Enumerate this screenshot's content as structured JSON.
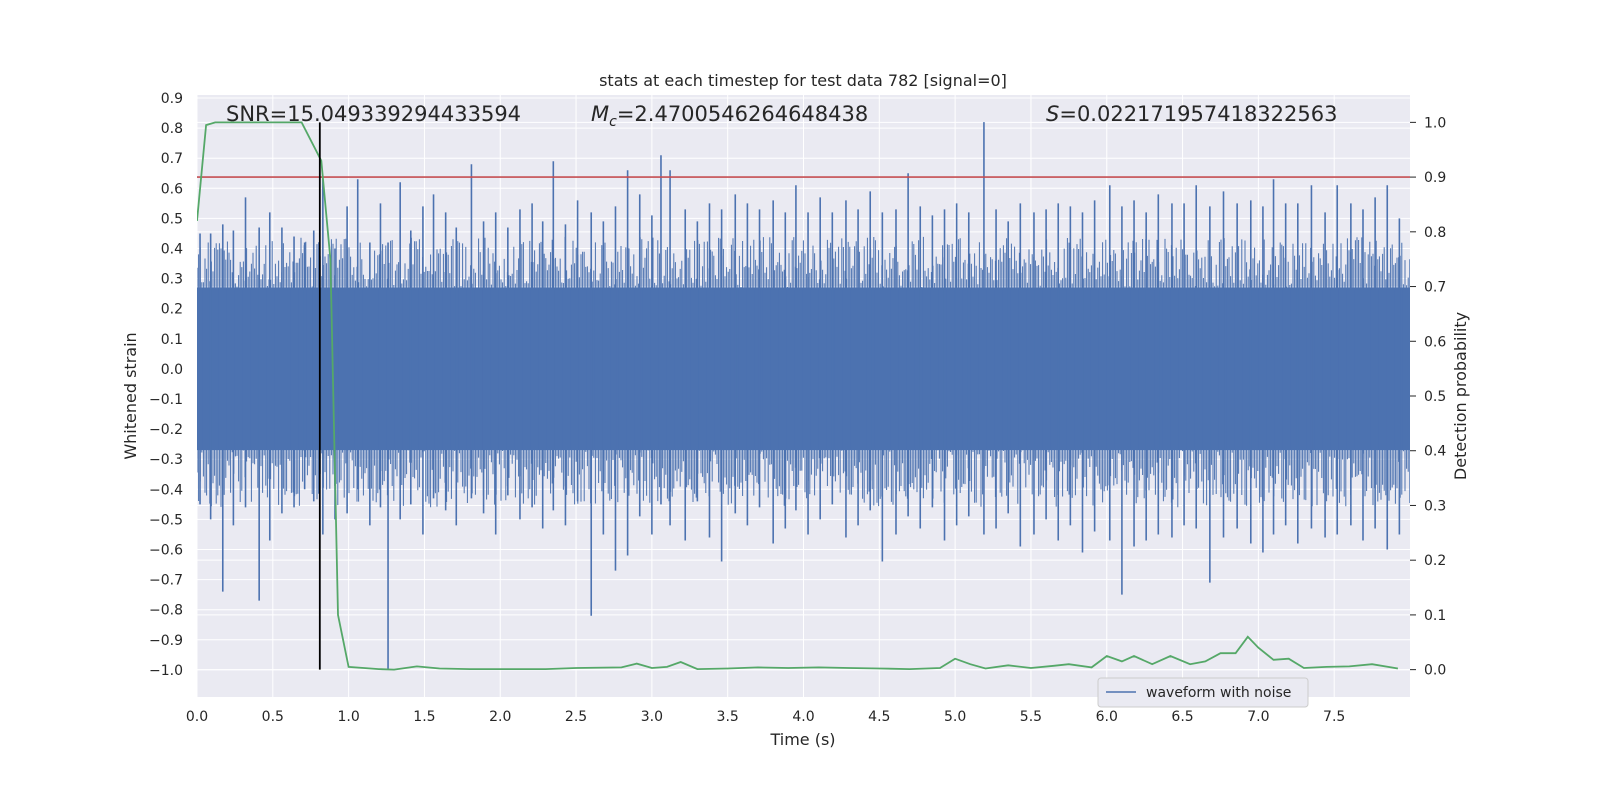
{
  "chart_data": {
    "type": "line",
    "title": "stats at each timestep for test data 782 [signal=0]",
    "xlabel": "Time (s)",
    "ylabel": "Whitened strain",
    "y2label": "Detection probability",
    "xlim": [
      0.0,
      8.0
    ],
    "ylim": [
      -1.09,
      0.91
    ],
    "y2lim": [
      -0.05,
      1.05
    ],
    "x_ticks": [
      "0.0",
      "0.5",
      "1.0",
      "1.5",
      "2.0",
      "2.5",
      "3.0",
      "3.5",
      "4.0",
      "4.5",
      "5.0",
      "5.5",
      "6.0",
      "6.5",
      "7.0",
      "7.5"
    ],
    "y_ticks": [
      "0.9",
      "0.8",
      "0.7",
      "0.6",
      "0.5",
      "0.4",
      "0.3",
      "0.2",
      "0.1",
      "0.0",
      "−0.1",
      "−0.2",
      "−0.3",
      "−0.4",
      "−0.5",
      "−0.6",
      "−0.7",
      "−0.8",
      "−0.9",
      "−1.0"
    ],
    "y2_ticks": [
      "1.0",
      "0.9",
      "0.8",
      "0.7",
      "0.6",
      "0.5",
      "0.4",
      "0.3",
      "0.2",
      "0.1",
      "0.0"
    ],
    "annotations": {
      "snr": "SNR=15.049339294433594",
      "mc_symbol": "M",
      "mc_sub": "c",
      "mc_value": "=2.4700546264648438",
      "s_symbol": "S",
      "s_value": "=0.022171957418322563"
    },
    "legend": {
      "label": "waveform with noise",
      "position": "lower-right"
    },
    "threshold": {
      "value": 0.9,
      "axis": "y2",
      "color": "#c44e52"
    },
    "marker_time": 0.81,
    "series": [
      {
        "name": "waveform with noise",
        "axis": "y",
        "color": "#4c72b0",
        "band": 0.27,
        "spikes": [
          {
            "t": 0.02,
            "min": -0.45,
            "max": 0.45
          },
          {
            "t": 0.09,
            "min": -0.5,
            "max": 0.45
          },
          {
            "t": 0.17,
            "min": -0.74,
            "max": 0.48
          },
          {
            "t": 0.24,
            "min": -0.52,
            "max": 0.46
          },
          {
            "t": 0.32,
            "min": -0.46,
            "max": 0.57
          },
          {
            "t": 0.41,
            "min": -0.77,
            "max": 0.47
          },
          {
            "t": 0.48,
            "min": -0.57,
            "max": 0.52
          },
          {
            "t": 0.56,
            "min": -0.48,
            "max": 0.47
          },
          {
            "t": 0.64,
            "min": -0.46,
            "max": 0.44
          },
          {
            "t": 0.71,
            "min": -0.4,
            "max": 0.42
          },
          {
            "t": 0.77,
            "min": -0.44,
            "max": 0.46
          },
          {
            "t": 0.83,
            "min": -0.55,
            "max": 0.63
          },
          {
            "t": 0.91,
            "min": -0.5,
            "max": 0.4
          },
          {
            "t": 0.99,
            "min": -0.48,
            "max": 0.54
          },
          {
            "t": 1.06,
            "min": -0.4,
            "max": 0.63
          },
          {
            "t": 1.14,
            "min": -0.52,
            "max": 0.42
          },
          {
            "t": 1.21,
            "min": -0.46,
            "max": 0.55
          },
          {
            "t": 1.26,
            "min": -1.0,
            "max": 0.42
          },
          {
            "t": 1.34,
            "min": -0.5,
            "max": 0.62
          },
          {
            "t": 1.41,
            "min": -0.45,
            "max": 0.46
          },
          {
            "t": 1.49,
            "min": -0.55,
            "max": 0.54
          },
          {
            "t": 1.56,
            "min": -0.43,
            "max": 0.58
          },
          {
            "t": 1.64,
            "min": -0.47,
            "max": 0.52
          },
          {
            "t": 1.71,
            "min": -0.52,
            "max": 0.47
          },
          {
            "t": 1.81,
            "min": -0.43,
            "max": 0.68
          },
          {
            "t": 1.89,
            "min": -0.48,
            "max": 0.49
          },
          {
            "t": 1.97,
            "min": -0.55,
            "max": 0.52
          },
          {
            "t": 2.05,
            "min": -0.42,
            "max": 0.47
          },
          {
            "t": 2.13,
            "min": -0.5,
            "max": 0.53
          },
          {
            "t": 2.21,
            "min": -0.46,
            "max": 0.55
          },
          {
            "t": 2.28,
            "min": -0.53,
            "max": 0.49
          },
          {
            "t": 2.35,
            "min": -0.47,
            "max": 0.69
          },
          {
            "t": 2.43,
            "min": -0.52,
            "max": 0.48
          },
          {
            "t": 2.51,
            "min": -0.44,
            "max": 0.56
          },
          {
            "t": 2.6,
            "min": -0.82,
            "max": 0.52
          },
          {
            "t": 2.68,
            "min": -0.55,
            "max": 0.49
          },
          {
            "t": 2.76,
            "min": -0.67,
            "max": 0.54
          },
          {
            "t": 2.84,
            "min": -0.62,
            "max": 0.66
          },
          {
            "t": 2.92,
            "min": -0.49,
            "max": 0.58
          },
          {
            "t": 3.0,
            "min": -0.55,
            "max": 0.51
          },
          {
            "t": 3.06,
            "min": -0.45,
            "max": 0.71
          },
          {
            "t": 3.12,
            "min": -0.52,
            "max": 0.66
          },
          {
            "t": 3.22,
            "min": -0.57,
            "max": 0.53
          },
          {
            "t": 3.3,
            "min": -0.44,
            "max": 0.49
          },
          {
            "t": 3.38,
            "min": -0.56,
            "max": 0.55
          },
          {
            "t": 3.46,
            "min": -0.64,
            "max": 0.53
          },
          {
            "t": 3.55,
            "min": -0.48,
            "max": 0.58
          },
          {
            "t": 3.63,
            "min": -0.52,
            "max": 0.55
          },
          {
            "t": 3.71,
            "min": -0.46,
            "max": 0.53
          },
          {
            "t": 3.8,
            "min": -0.58,
            "max": 0.56
          },
          {
            "t": 3.88,
            "min": -0.53,
            "max": 0.52
          },
          {
            "t": 3.95,
            "min": -0.47,
            "max": 0.61
          },
          {
            "t": 4.03,
            "min": -0.55,
            "max": 0.52
          },
          {
            "t": 4.11,
            "min": -0.5,
            "max": 0.57
          },
          {
            "t": 4.19,
            "min": -0.45,
            "max": 0.52
          },
          {
            "t": 4.28,
            "min": -0.56,
            "max": 0.56
          },
          {
            "t": 4.36,
            "min": -0.52,
            "max": 0.53
          },
          {
            "t": 4.44,
            "min": -0.47,
            "max": 0.59
          },
          {
            "t": 4.52,
            "min": -0.64,
            "max": 0.52
          },
          {
            "t": 4.61,
            "min": -0.55,
            "max": 0.53
          },
          {
            "t": 4.69,
            "min": -0.49,
            "max": 0.65
          },
          {
            "t": 4.77,
            "min": -0.53,
            "max": 0.54
          },
          {
            "t": 4.85,
            "min": -0.46,
            "max": 0.51
          },
          {
            "t": 4.93,
            "min": -0.57,
            "max": 0.53
          },
          {
            "t": 5.01,
            "min": -0.52,
            "max": 0.55
          },
          {
            "t": 5.09,
            "min": -0.49,
            "max": 0.52
          },
          {
            "t": 5.19,
            "min": -0.55,
            "max": 0.82
          },
          {
            "t": 5.27,
            "min": -0.53,
            "max": 0.53
          },
          {
            "t": 5.35,
            "min": -0.48,
            "max": 0.49
          },
          {
            "t": 5.43,
            "min": -0.59,
            "max": 0.55
          },
          {
            "t": 5.52,
            "min": -0.55,
            "max": 0.52
          },
          {
            "t": 5.6,
            "min": -0.5,
            "max": 0.53
          },
          {
            "t": 5.68,
            "min": -0.57,
            "max": 0.55
          },
          {
            "t": 5.76,
            "min": -0.52,
            "max": 0.54
          },
          {
            "t": 5.84,
            "min": -0.61,
            "max": 0.52
          },
          {
            "t": 5.92,
            "min": -0.54,
            "max": 0.56
          },
          {
            "t": 6.02,
            "min": -0.57,
            "max": 0.61
          },
          {
            "t": 6.1,
            "min": -0.75,
            "max": 0.54
          },
          {
            "t": 6.18,
            "min": -0.59,
            "max": 0.56
          },
          {
            "t": 6.26,
            "min": -0.57,
            "max": 0.52
          },
          {
            "t": 6.34,
            "min": -0.55,
            "max": 0.58
          },
          {
            "t": 6.43,
            "min": -0.56,
            "max": 0.55
          },
          {
            "t": 6.51,
            "min": -0.52,
            "max": 0.55
          },
          {
            "t": 6.59,
            "min": -0.53,
            "max": 0.61
          },
          {
            "t": 6.68,
            "min": -0.71,
            "max": 0.54
          },
          {
            "t": 6.77,
            "min": -0.56,
            "max": 0.59
          },
          {
            "t": 6.86,
            "min": -0.53,
            "max": 0.55
          },
          {
            "t": 6.95,
            "min": -0.58,
            "max": 0.56
          },
          {
            "t": 7.03,
            "min": -0.61,
            "max": 0.54
          },
          {
            "t": 7.1,
            "min": -0.55,
            "max": 0.63
          },
          {
            "t": 7.18,
            "min": -0.52,
            "max": 0.55
          },
          {
            "t": 7.26,
            "min": -0.58,
            "max": 0.55
          },
          {
            "t": 7.35,
            "min": -0.53,
            "max": 0.61
          },
          {
            "t": 7.44,
            "min": -0.56,
            "max": 0.52
          },
          {
            "t": 7.52,
            "min": -0.55,
            "max": 0.61
          },
          {
            "t": 7.61,
            "min": -0.52,
            "max": 0.55
          },
          {
            "t": 7.69,
            "min": -0.57,
            "max": 0.53
          },
          {
            "t": 7.77,
            "min": -0.53,
            "max": 0.57
          },
          {
            "t": 7.85,
            "min": -0.6,
            "max": 0.61
          },
          {
            "t": 7.93,
            "min": -0.55,
            "max": 0.5
          }
        ]
      },
      {
        "name": "detection probability",
        "axis": "y2",
        "color": "#55a868",
        "points": [
          [
            0.0,
            0.82
          ],
          [
            0.06,
            0.995
          ],
          [
            0.12,
            1.0
          ],
          [
            0.3,
            1.0
          ],
          [
            0.5,
            1.0
          ],
          [
            0.69,
            1.0
          ],
          [
            0.82,
            0.93
          ],
          [
            0.88,
            0.75
          ],
          [
            0.93,
            0.1
          ],
          [
            1.0,
            0.005
          ],
          [
            1.1,
            0.003
          ],
          [
            1.2,
            0.001
          ],
          [
            1.3,
            0.0
          ],
          [
            1.45,
            0.006
          ],
          [
            1.6,
            0.002
          ],
          [
            1.8,
            0.001
          ],
          [
            2.0,
            0.001
          ],
          [
            2.3,
            0.001
          ],
          [
            2.5,
            0.003
          ],
          [
            2.8,
            0.004
          ],
          [
            2.9,
            0.011
          ],
          [
            3.0,
            0.003
          ],
          [
            3.1,
            0.005
          ],
          [
            3.19,
            0.014
          ],
          [
            3.3,
            0.001
          ],
          [
            3.5,
            0.002
          ],
          [
            3.7,
            0.004
          ],
          [
            3.9,
            0.003
          ],
          [
            4.1,
            0.004
          ],
          [
            4.3,
            0.003
          ],
          [
            4.5,
            0.002
          ],
          [
            4.7,
            0.001
          ],
          [
            4.9,
            0.003
          ],
          [
            5.0,
            0.02
          ],
          [
            5.1,
            0.01
          ],
          [
            5.2,
            0.002
          ],
          [
            5.35,
            0.008
          ],
          [
            5.5,
            0.003
          ],
          [
            5.65,
            0.007
          ],
          [
            5.75,
            0.01
          ],
          [
            5.9,
            0.004
          ],
          [
            6.0,
            0.025
          ],
          [
            6.1,
            0.015
          ],
          [
            6.18,
            0.025
          ],
          [
            6.3,
            0.01
          ],
          [
            6.42,
            0.025
          ],
          [
            6.55,
            0.01
          ],
          [
            6.65,
            0.015
          ],
          [
            6.75,
            0.03
          ],
          [
            6.85,
            0.03
          ],
          [
            6.93,
            0.06
          ],
          [
            7.0,
            0.04
          ],
          [
            7.1,
            0.018
          ],
          [
            7.2,
            0.02
          ],
          [
            7.3,
            0.003
          ],
          [
            7.45,
            0.005
          ],
          [
            7.6,
            0.006
          ],
          [
            7.75,
            0.01
          ],
          [
            7.92,
            0.002
          ]
        ]
      }
    ]
  }
}
